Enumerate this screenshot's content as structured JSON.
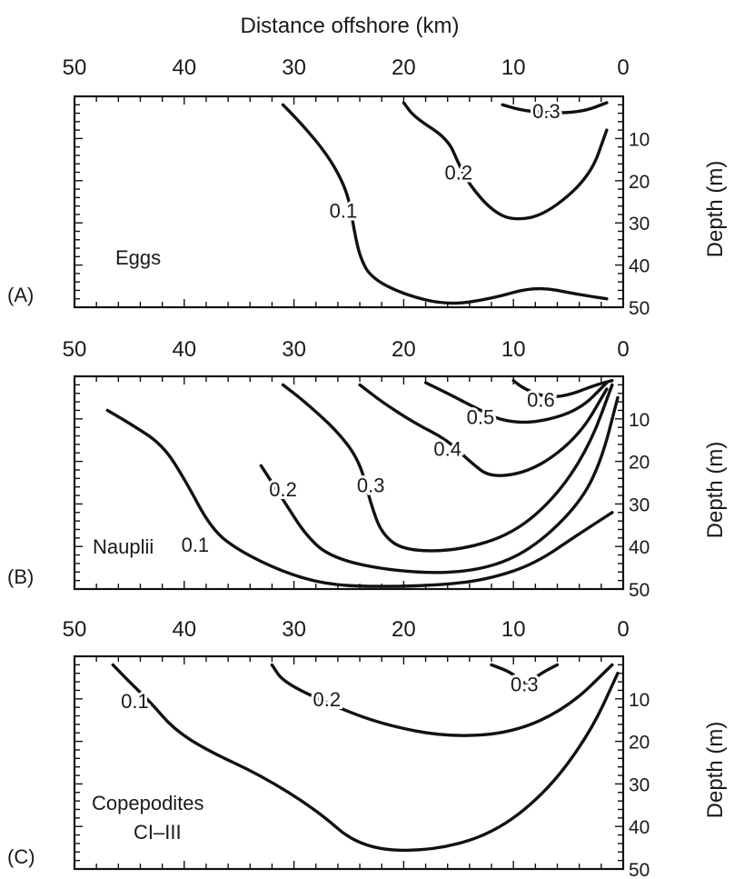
{
  "chart_data": [
    {
      "type": "contour",
      "panel_letter": "(A)",
      "panel_label": "Eggs",
      "top_axis_title": "Distance offshore (km)",
      "xlabel": "Distance offshore (km)",
      "ylabel": "Depth (m)",
      "x_ticks": [
        50,
        40,
        30,
        20,
        10,
        0
      ],
      "y_ticks": [
        10,
        20,
        30,
        40,
        50
      ],
      "xlim": [
        50,
        0
      ],
      "ylim": [
        0,
        50
      ],
      "contours": [
        {
          "level": "0.1",
          "label_at": [
            25.5,
            27
          ],
          "points": [
            [
              31,
              2
            ],
            [
              29.5,
              6
            ],
            [
              27.5,
              12
            ],
            [
              26,
              18
            ],
            [
              25,
              24
            ],
            [
              24.5,
              32
            ],
            [
              24,
              38
            ],
            [
              23,
              43
            ],
            [
              20,
              47
            ],
            [
              16,
              49.5
            ],
            [
              12,
              48
            ],
            [
              8,
              45
            ],
            [
              4,
              47
            ],
            [
              1.5,
              48
            ]
          ]
        },
        {
          "level": "0.2",
          "label_at": [
            15,
            18
          ],
          "points": [
            [
              20,
              1.5
            ],
            [
              19,
              5
            ],
            [
              16,
              10
            ],
            [
              15,
              16
            ],
            [
              14,
              21
            ],
            [
              12,
              27
            ],
            [
              10,
              29.5
            ],
            [
              7,
              28
            ],
            [
              3,
              19
            ],
            [
              1.5,
              8
            ]
          ]
        },
        {
          "level": "0.3",
          "label_at": [
            7,
            3.5
          ],
          "points": [
            [
              11,
              2
            ],
            [
              9,
              3.5
            ],
            [
              6,
              4
            ],
            [
              3.5,
              3.5
            ],
            [
              1.5,
              1.5
            ]
          ]
        }
      ]
    },
    {
      "type": "contour",
      "panel_letter": "(B)",
      "panel_label": "Nauplii",
      "xlabel": "",
      "ylabel": "Depth (m)",
      "x_ticks": [
        50,
        40,
        30,
        20,
        10,
        0
      ],
      "y_ticks": [
        10,
        20,
        30,
        40,
        50
      ],
      "xlim": [
        50,
        0
      ],
      "ylim": [
        0,
        50
      ],
      "contours": [
        {
          "level": "0.1",
          "label_at": [
            39,
            39.5
          ],
          "points": [
            [
              47,
              8
            ],
            [
              45,
              11
            ],
            [
              42,
              16
            ],
            [
              40,
              24
            ],
            [
              37.5,
              36
            ],
            [
              35,
              41
            ],
            [
              31,
              46
            ],
            [
              27,
              49
            ],
            [
              22,
              49.5
            ],
            [
              16,
              49
            ],
            [
              12,
              47.5
            ],
            [
              8,
              44
            ],
            [
              4,
              37
            ],
            [
              1,
              32
            ]
          ]
        },
        {
          "level": "0.2",
          "label_at": [
            31,
            26.5
          ],
          "points": [
            [
              33,
              21
            ],
            [
              32,
              25
            ],
            [
              30.5,
              31
            ],
            [
              29,
              37
            ],
            [
              27,
              42
            ],
            [
              23,
              45
            ],
            [
              17,
              46.5
            ],
            [
              12,
              45
            ],
            [
              8,
              40
            ],
            [
              4,
              30
            ],
            [
              2,
              20
            ],
            [
              0.5,
              5
            ]
          ]
        },
        {
          "level": "0.3",
          "label_at": [
            23,
            25.5
          ],
          "points": [
            [
              31,
              2
            ],
            [
              29,
              6
            ],
            [
              26,
              13
            ],
            [
              24,
              20
            ],
            [
              23,
              30
            ],
            [
              22,
              37
            ],
            [
              20,
              41
            ],
            [
              15,
              41
            ],
            [
              10,
              37
            ],
            [
              6,
              28
            ],
            [
              3,
              16
            ],
            [
              1,
              2
            ]
          ]
        },
        {
          "level": "0.4",
          "label_at": [
            16,
            17
          ],
          "points": [
            [
              24,
              2
            ],
            [
              22,
              6
            ],
            [
              19,
              11
            ],
            [
              16,
              15
            ],
            [
              14,
              20
            ],
            [
              12,
              24
            ],
            [
              8,
              22
            ],
            [
              4,
              14
            ],
            [
              1.5,
              3
            ]
          ]
        },
        {
          "level": "0.5",
          "label_at": [
            13,
            9.5
          ],
          "points": [
            [
              18,
              1.5
            ],
            [
              16,
              4
            ],
            [
              13,
              8
            ],
            [
              11,
              10.5
            ],
            [
              8,
              11
            ],
            [
              4,
              8
            ],
            [
              1.5,
              1.5
            ]
          ]
        },
        {
          "level": "0.6",
          "label_at": [
            7.5,
            5.5
          ],
          "points": [
            [
              10,
              1
            ],
            [
              9,
              3
            ],
            [
              7,
              5
            ],
            [
              5,
              4.5
            ],
            [
              2.5,
              2
            ],
            [
              1,
              1
            ]
          ]
        }
      ]
    },
    {
      "type": "contour",
      "panel_letter": "(C)",
      "panel_label": "Copepodites",
      "panel_label_2": "CI–III",
      "xlabel": "",
      "ylabel": "Depth (m)",
      "x_ticks": [
        50,
        40,
        30,
        20,
        10,
        0
      ],
      "y_ticks": [
        10,
        20,
        30,
        40,
        50
      ],
      "xlim": [
        50,
        0
      ],
      "ylim": [
        0,
        50
      ],
      "contours": [
        {
          "level": "0.1",
          "label_at": [
            44.5,
            10.5
          ],
          "points": [
            [
              46.5,
              2
            ],
            [
              45,
              6
            ],
            [
              43,
              11
            ],
            [
              41,
              17
            ],
            [
              38,
              22
            ],
            [
              33,
              28
            ],
            [
              28,
              36
            ],
            [
              24,
              45
            ],
            [
              18,
              46
            ],
            [
              12,
              42
            ],
            [
              7,
              32
            ],
            [
              3,
              18
            ],
            [
              0.5,
              4
            ]
          ]
        },
        {
          "level": "0.2",
          "label_at": [
            27,
            10
          ],
          "points": [
            [
              32,
              2
            ],
            [
              31,
              6
            ],
            [
              27,
              11
            ],
            [
              22,
              16
            ],
            [
              16,
              19
            ],
            [
              10,
              18
            ],
            [
              5,
              12
            ],
            [
              1,
              2
            ]
          ]
        },
        {
          "level": "0.3",
          "label_at": [
            9,
            6.5
          ],
          "points": [
            [
              12,
              2
            ],
            [
              10,
              4
            ],
            [
              9,
              7
            ],
            [
              7.5,
              4
            ],
            [
              6,
              2
            ]
          ]
        }
      ]
    }
  ]
}
